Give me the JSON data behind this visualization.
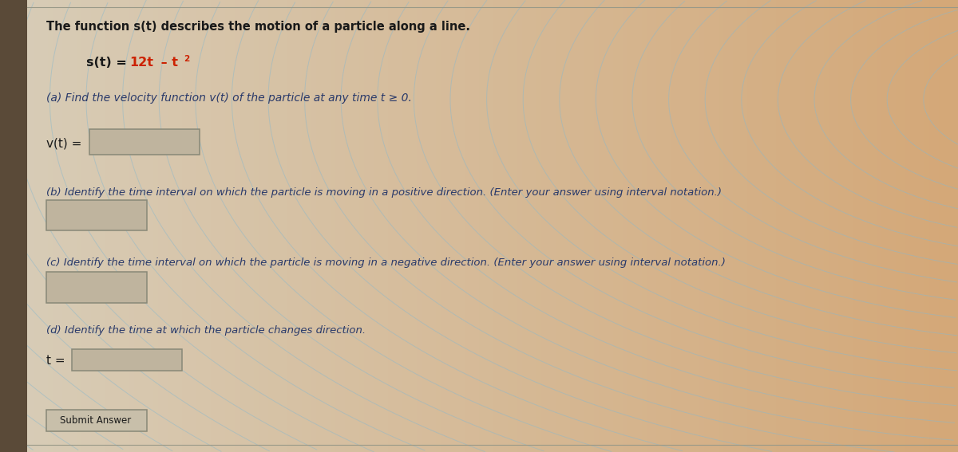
{
  "bg_left_color": "#d8cdb8",
  "bg_right_color": "#d4a878",
  "panel_color": "#cfc3ad",
  "wave_color": "#8ab8cc",
  "wave_alpha": 0.5,
  "input_box_color": "#bfb49e",
  "input_box_edge": "#888877",
  "submit_box_color": "#c8bfaa",
  "left_bar_color": "#5a4a38",
  "text_dark": "#1a1a1a",
  "text_blue": "#2a3a6a",
  "text_red": "#cc2200",
  "title_text": "The function s(t) describes the motion of a particle along a line.",
  "formula_black": "s(t) = ",
  "formula_red1": "12t",
  "formula_red2": " – t",
  "formula_super": "2",
  "part_a_text": "(a) Find the velocity function v(t) of the particle at any time t ≥ 0.",
  "part_a_label": "v(t) =",
  "part_b_text": "(b) Identify the time interval on which the particle is moving in a positive direction. (Enter your answer using interval notation.)",
  "part_c_text": "(c) Identify the time interval on which the particle is moving in a negative direction. (Enter your answer using interval notation.)",
  "part_d_text": "(d) Identify the time at which the particle changes direction.",
  "part_d_label": "t =",
  "submit_text": "Submit Answer",
  "figsize": [
    12.0,
    5.67
  ],
  "dpi": 100
}
